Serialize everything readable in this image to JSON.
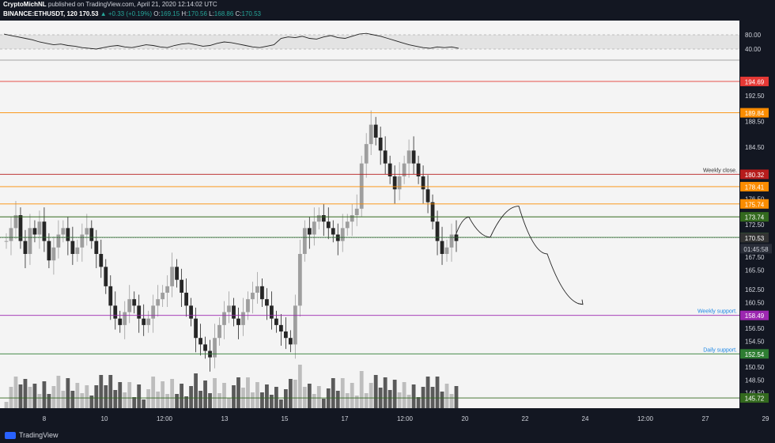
{
  "header": {
    "publisher": "CryptoMichNL",
    "published_line": "published on TradingView.com, April 21, 2020 12:14:02 UTC",
    "symbol": "BINANCE:ETHUSDT, 120",
    "last": "170.53",
    "change": "▲ +0.33 (+0.19%)",
    "o_label": "O:",
    "o": "169.15",
    "h_label": "H:",
    "h": "170.56",
    "l_label": "L:",
    "l": "168.86",
    "c_label": "C:",
    "c": "170.53"
  },
  "footer": {
    "brand": "TradingView"
  },
  "chart_data": {
    "type": "candlestick",
    "symbol": "BINANCE:ETHUSDT",
    "interval": "120",
    "ylim": [
      144.5,
      197.5
    ],
    "y_ticks": [
      146.5,
      148.5,
      150.5,
      152.5,
      154.5,
      156.5,
      158.5,
      160.5,
      162.5,
      165.5,
      167.5,
      170.5,
      172.5,
      176.5,
      184.5,
      188.5,
      192.5
    ],
    "x_ticks": [
      "8",
      "10",
      "12:00",
      "13",
      "15",
      "17",
      "12:00",
      "20",
      "22",
      "24",
      "12:00",
      "27",
      "29"
    ],
    "levels": [
      {
        "price": 194.69,
        "label": "194.69",
        "color": "#e53935",
        "note": ""
      },
      {
        "price": 189.84,
        "label": "189.84",
        "color": "#fb8c00",
        "note": ""
      },
      {
        "price": 180.32,
        "label": "180.32",
        "color": "#b71c1c",
        "note": "Weekly close."
      },
      {
        "price": 178.41,
        "label": "178.41",
        "color": "#fb8c00",
        "note": ""
      },
      {
        "price": 175.74,
        "label": "175.74",
        "color": "#fb8c00",
        "note": ""
      },
      {
        "price": 173.74,
        "label": "173.74",
        "color": "#33691e",
        "note": ""
      },
      {
        "price": 170.56,
        "label": "170.56",
        "color": "#2e7d32",
        "note": ""
      },
      {
        "price": 170.53,
        "label": "170.53",
        "color": "#333333",
        "note": ""
      },
      {
        "price": 158.49,
        "label": "158.49",
        "color": "#9c27b0",
        "note": "Weekly support."
      },
      {
        "price": 152.54,
        "label": "152.54",
        "color": "#2e7d32",
        "note": "Daily support."
      },
      {
        "price": 145.72,
        "label": "145.72",
        "color": "#33691e",
        "note": ""
      }
    ],
    "countdown": "01:45:58",
    "close_series": [
      170,
      172,
      174,
      170,
      168,
      172,
      171,
      173,
      170,
      167,
      169,
      171,
      172,
      170,
      168,
      169,
      171,
      172,
      170,
      168,
      166,
      163,
      160,
      158,
      157,
      159,
      161,
      160,
      158,
      157,
      158,
      160,
      161,
      162,
      163,
      166,
      164,
      162,
      160,
      158,
      155,
      154,
      153,
      152,
      155,
      157,
      159,
      160,
      158,
      157,
      159,
      161,
      162,
      163,
      161,
      160,
      158,
      157,
      156,
      155,
      154,
      160,
      168,
      172,
      171,
      173,
      174,
      173,
      172,
      171,
      170,
      172,
      173,
      174,
      175,
      182,
      185,
      188,
      186,
      184,
      182,
      180,
      178,
      180,
      182,
      184,
      182,
      180,
      178,
      176,
      173,
      170,
      168,
      169,
      171,
      170
    ],
    "oscillator": {
      "levels": [
        40,
        80
      ],
      "ticks": [
        "80.00",
        "40.00"
      ],
      "values": [
        82,
        78,
        74,
        70,
        66,
        60,
        56,
        52,
        54,
        50,
        48,
        44,
        42,
        40,
        44,
        48,
        50,
        46,
        44,
        48,
        52,
        50,
        46,
        44,
        50,
        54,
        56,
        52,
        48,
        50,
        56,
        60,
        58,
        54,
        50,
        46,
        44,
        48,
        52,
        70,
        74,
        72,
        76,
        70,
        68,
        74,
        78,
        72,
        70,
        76,
        82,
        84,
        80,
        76,
        70,
        64,
        58,
        52,
        48,
        44,
        42,
        46,
        44,
        46,
        42
      ]
    },
    "projection": [
      [
        0,
        170.5
      ],
      [
        2,
        173.7
      ],
      [
        5,
        170.6
      ],
      [
        9,
        175.4
      ],
      [
        13,
        168
      ],
      [
        18,
        160.2
      ]
    ]
  }
}
